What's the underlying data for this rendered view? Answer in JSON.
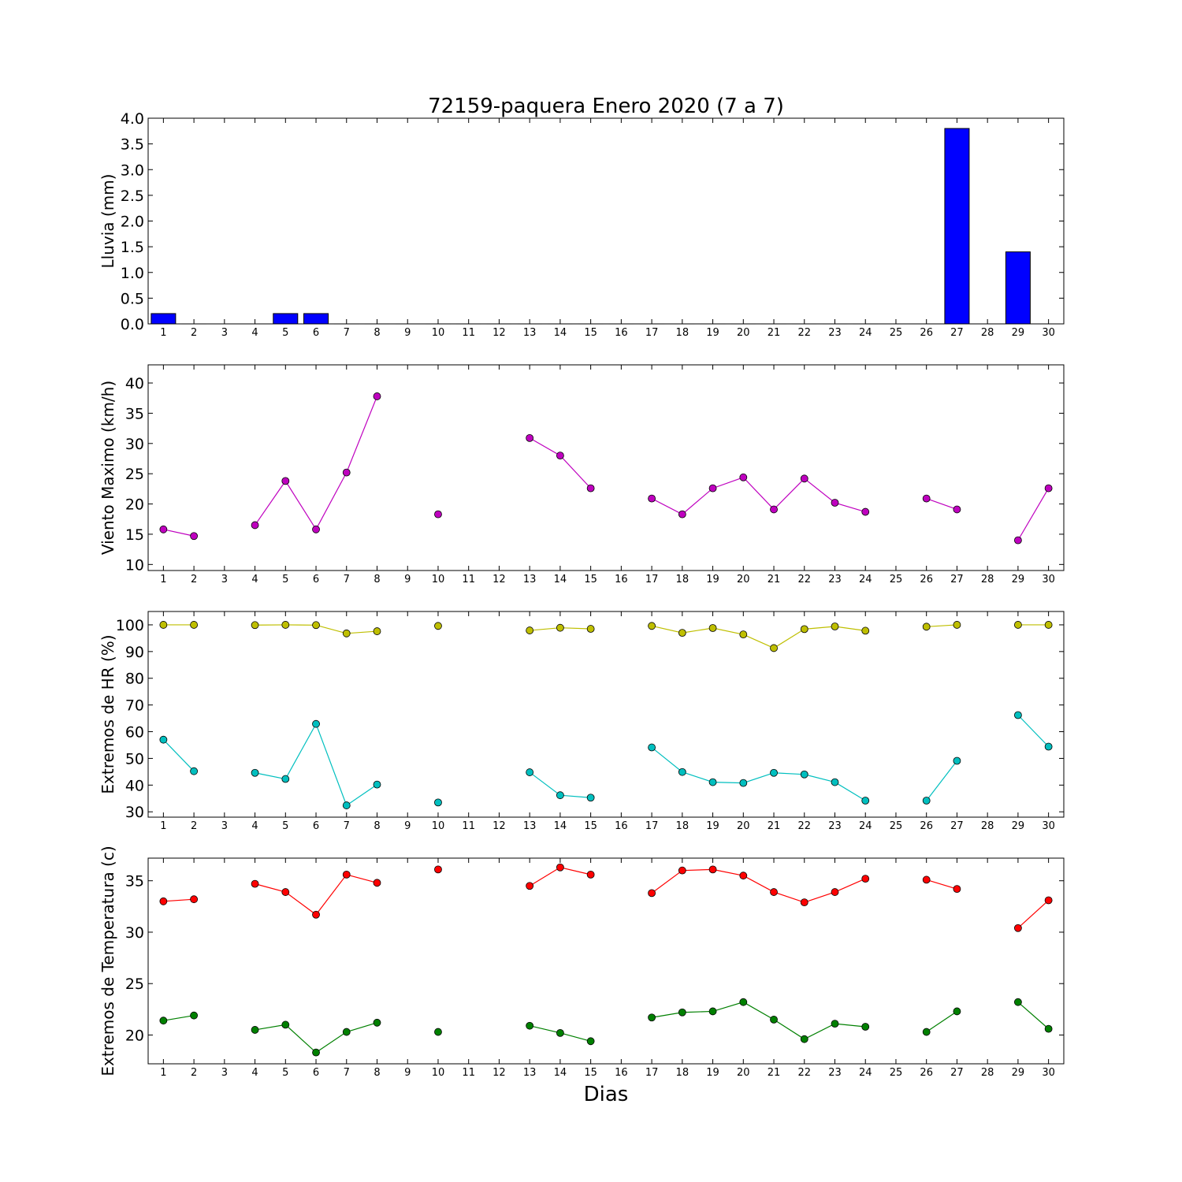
{
  "title": "72159-paquera Enero 2020  (7 a 7)",
  "xlabel": "Dias",
  "chart_data": [
    {
      "type": "bar",
      "ylabel": "Lluvia (mm)",
      "ylim": [
        0,
        4.0
      ],
      "yticks": [
        "0.0",
        "0.5",
        "1.0",
        "1.5",
        "2.0",
        "2.5",
        "3.0",
        "3.5",
        "4.0"
      ],
      "ytick_values": [
        0,
        0.5,
        1.0,
        1.5,
        2.0,
        2.5,
        3.0,
        3.5,
        4.0
      ],
      "x": [
        1,
        2,
        3,
        4,
        5,
        6,
        7,
        8,
        9,
        10,
        11,
        12,
        13,
        14,
        15,
        16,
        17,
        18,
        19,
        20,
        21,
        22,
        23,
        24,
        25,
        26,
        27,
        28,
        29,
        30
      ],
      "values": [
        0.2,
        0,
        null,
        null,
        0.2,
        0.2,
        0,
        0,
        0,
        0,
        0,
        0,
        0,
        0,
        0,
        0,
        0,
        0,
        0,
        0,
        0,
        0,
        0,
        0,
        null,
        null,
        3.8,
        null,
        1.4,
        null
      ],
      "color": "#0000ff"
    },
    {
      "type": "line",
      "ylabel": "Viento Maximo (km/h)",
      "ylim": [
        9,
        43
      ],
      "yticks": [
        "10",
        "15",
        "20",
        "25",
        "30",
        "35",
        "40"
      ],
      "ytick_values": [
        10,
        15,
        20,
        25,
        30,
        35,
        40
      ],
      "x": [
        1,
        2,
        3,
        4,
        5,
        6,
        7,
        8,
        9,
        10,
        11,
        12,
        13,
        14,
        15,
        16,
        17,
        18,
        19,
        20,
        21,
        22,
        23,
        24,
        25,
        26,
        27,
        28,
        29,
        30
      ],
      "series": [
        {
          "color": "#bf00bf",
          "values": [
            15.8,
            14.7,
            null,
            16.5,
            23.8,
            15.8,
            25.2,
            37.8,
            null,
            18.3,
            null,
            null,
            30.9,
            28.0,
            22.6,
            null,
            20.9,
            18.3,
            22.6,
            24.4,
            19.1,
            24.2,
            20.2,
            18.7,
            null,
            20.9,
            19.1,
            null,
            14.0,
            22.6
          ]
        }
      ]
    },
    {
      "type": "line",
      "ylabel": "Extremos de HR (%)",
      "ylim": [
        28,
        105
      ],
      "yticks": [
        "30",
        "40",
        "50",
        "60",
        "70",
        "80",
        "90",
        "100"
      ],
      "ytick_values": [
        30,
        40,
        50,
        60,
        70,
        80,
        90,
        100
      ],
      "x": [
        1,
        2,
        3,
        4,
        5,
        6,
        7,
        8,
        9,
        10,
        11,
        12,
        13,
        14,
        15,
        16,
        17,
        18,
        19,
        20,
        21,
        22,
        23,
        24,
        25,
        26,
        27,
        28,
        29,
        30
      ],
      "series": [
        {
          "color": "#bfbf00",
          "values": [
            100,
            100,
            null,
            99.9,
            100,
            99.9,
            96.8,
            97.6,
            null,
            99.6,
            null,
            null,
            97.9,
            98.9,
            98.5,
            null,
            99.6,
            97.0,
            98.8,
            96.4,
            91.3,
            98.4,
            99.4,
            97.8,
            null,
            99.3,
            100,
            null,
            100,
            100
          ]
        },
        {
          "color": "#00bfbf",
          "values": [
            57.0,
            45.2,
            null,
            44.6,
            42.3,
            62.9,
            32.4,
            40.2,
            null,
            33.5,
            null,
            null,
            44.8,
            36.2,
            35.3,
            null,
            54.1,
            44.9,
            41.1,
            40.8,
            44.6,
            44.0,
            41.1,
            34.2,
            null,
            34.2,
            49.1,
            null,
            66.2,
            54.4
          ]
        }
      ]
    },
    {
      "type": "line",
      "ylabel": "Extremos de Temperatura (c)",
      "ylim": [
        17.2,
        37.2
      ],
      "yticks": [
        "20",
        "25",
        "30",
        "35"
      ],
      "ytick_values": [
        20,
        25,
        30,
        35
      ],
      "x": [
        1,
        2,
        3,
        4,
        5,
        6,
        7,
        8,
        9,
        10,
        11,
        12,
        13,
        14,
        15,
        16,
        17,
        18,
        19,
        20,
        21,
        22,
        23,
        24,
        25,
        26,
        27,
        28,
        29,
        30
      ],
      "series": [
        {
          "color": "#ff0000",
          "values": [
            33.0,
            33.2,
            null,
            34.7,
            33.9,
            31.7,
            35.6,
            34.8,
            null,
            36.1,
            null,
            null,
            34.5,
            36.3,
            35.6,
            null,
            33.8,
            36.0,
            36.1,
            35.5,
            33.9,
            32.9,
            33.9,
            35.2,
            null,
            35.1,
            34.2,
            null,
            30.4,
            33.1
          ]
        },
        {
          "color": "#008000",
          "values": [
            21.4,
            21.9,
            null,
            20.5,
            21.0,
            18.3,
            20.3,
            21.2,
            null,
            20.3,
            null,
            null,
            20.9,
            20.2,
            19.4,
            null,
            21.7,
            22.2,
            22.3,
            23.2,
            21.5,
            19.6,
            21.1,
            20.8,
            null,
            20.3,
            22.3,
            null,
            23.2,
            20.6
          ]
        }
      ]
    }
  ]
}
